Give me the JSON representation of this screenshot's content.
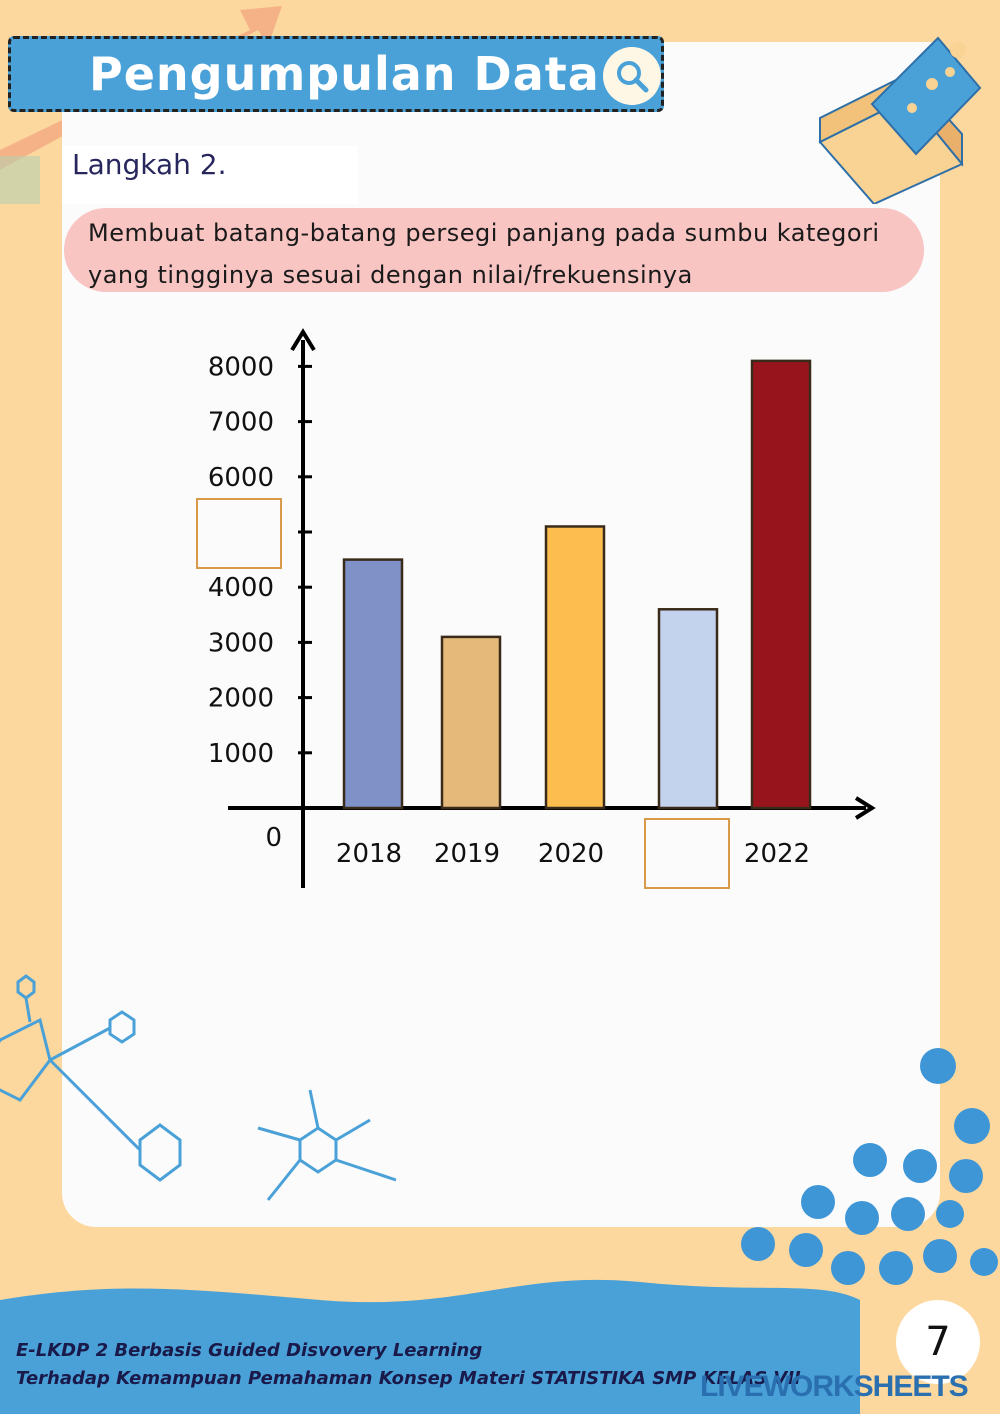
{
  "header": {
    "title": "Pengumpulan Data"
  },
  "step": {
    "label": "Langkah 2."
  },
  "instruction": {
    "text": "Membuat batang-batang persegi panjang pada sumbu kategori yang tingginya sesuai dengan nilai/frekuensinya"
  },
  "chart_data": {
    "type": "bar",
    "categories": [
      "2018",
      "2019",
      "2020",
      "",
      "2022"
    ],
    "values": [
      4500,
      3100,
      5100,
      3600,
      8100
    ],
    "colors": [
      "#7f91c6",
      "#e5b97a",
      "#fdbd4f",
      "#c3d3ee",
      "#98141d"
    ],
    "yticks": [
      "0",
      "1000",
      "2000",
      "3000",
      "4000",
      "",
      "6000",
      "7000",
      "8000"
    ],
    "ylim": [
      0,
      8500
    ],
    "grid": false,
    "blank_answer_boxes": [
      "y-axis tick 5000",
      "x-axis category 2021"
    ]
  },
  "footer": {
    "line1": "E-LKDP 2 Berbasis Guided Disvovery Learning",
    "line2": "Terhadap Kemampuan Pemahaman Konsep Materi STATISTIKA SMP KELAS VII",
    "page_number": "7",
    "watermark": "LIVEWORKSHEETS"
  },
  "colors": {
    "accent_blue": "#4aa1d8",
    "background": "#fcd89e",
    "pink": "#f8c5c3",
    "answer_box": "#d89a4a"
  }
}
